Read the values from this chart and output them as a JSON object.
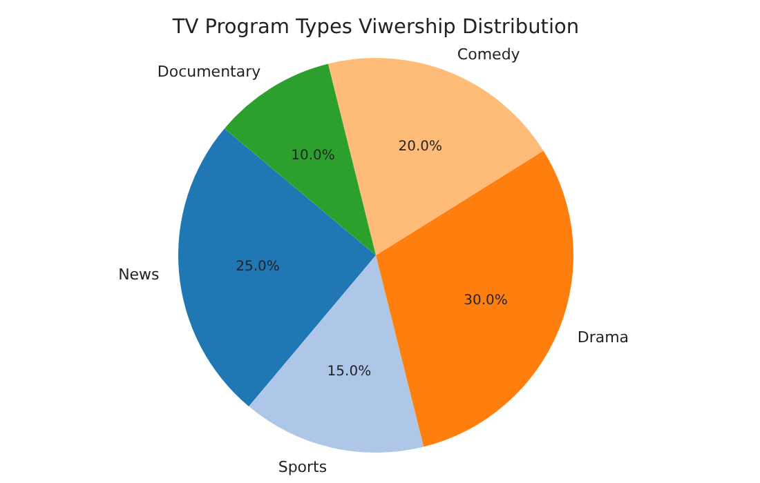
{
  "chart_data": {
    "type": "pie",
    "title": "TV Program Types Viwership Distribution",
    "categories": [
      "News",
      "Sports",
      "Drama",
      "Comedy",
      "Documentary"
    ],
    "values": [
      25,
      15,
      30,
      20,
      10
    ],
    "colors": [
      "#1f77b4",
      "#aec7e8",
      "#ff7f0e",
      "#ffbb78",
      "#2ca02c"
    ],
    "value_labels": [
      "25.0%",
      "15.0%",
      "30.0%",
      "20.0%",
      "10.0%"
    ]
  }
}
